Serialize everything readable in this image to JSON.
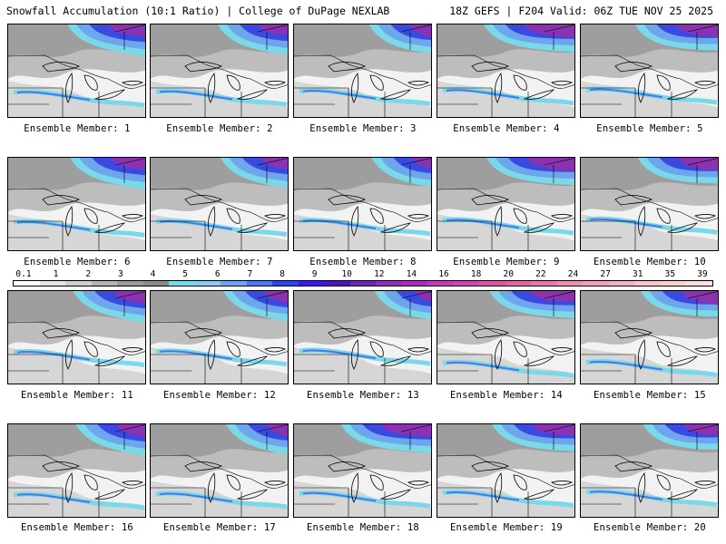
{
  "header": {
    "title": "Snowfall Accumulation (10:1 Ratio) | College of DuPage NEXLAB",
    "run": "18Z GEFS | F204 Valid: 06Z TUE NOV 25 2025"
  },
  "legend": {
    "labels": [
      "0.1",
      "1",
      "2",
      "3",
      "4",
      "5",
      "6",
      "7",
      "8",
      "9",
      "10",
      "12",
      "14",
      "16",
      "18",
      "20",
      "22",
      "24",
      "27",
      "31",
      "35",
      "39"
    ],
    "colors": [
      "#ffffff",
      "#e6e6e6",
      "#cfcfcf",
      "#b4b4b4",
      "#9a9a9a",
      "#8a8a8a",
      "#7ad8e8",
      "#8cc8f0",
      "#6ea6ee",
      "#4a78e6",
      "#2e46e0",
      "#3a1ce0",
      "#4a1ab0",
      "#6a2aa8",
      "#8a32b0",
      "#a232b8",
      "#b840b4",
      "#c84ab0",
      "#d05ca4",
      "#d66aa6",
      "#e07cb0",
      "#e890b6",
      "#eea0bc",
      "#f2b2c6",
      "#f6c4cc",
      "#f8d2d2",
      "#fae0dc"
    ]
  },
  "members": [
    {
      "label": "Ensemble Member: 1"
    },
    {
      "label": "Ensemble Member: 2"
    },
    {
      "label": "Ensemble Member: 3"
    },
    {
      "label": "Ensemble Member: 4"
    },
    {
      "label": "Ensemble Member: 5"
    },
    {
      "label": "Ensemble Member: 6"
    },
    {
      "label": "Ensemble Member: 7"
    },
    {
      "label": "Ensemble Member: 8"
    },
    {
      "label": "Ensemble Member: 9"
    },
    {
      "label": "Ensemble Member: 10"
    },
    {
      "label": "Ensemble Member: 11"
    },
    {
      "label": "Ensemble Member: 12"
    },
    {
      "label": "Ensemble Member: 13"
    },
    {
      "label": "Ensemble Member: 14"
    },
    {
      "label": "Ensemble Member: 15"
    },
    {
      "label": "Ensemble Member: 16"
    },
    {
      "label": "Ensemble Member: 17"
    },
    {
      "label": "Ensemble Member: 18"
    },
    {
      "label": "Ensemble Member: 19"
    },
    {
      "label": "Ensemble Member: 20"
    }
  ]
}
